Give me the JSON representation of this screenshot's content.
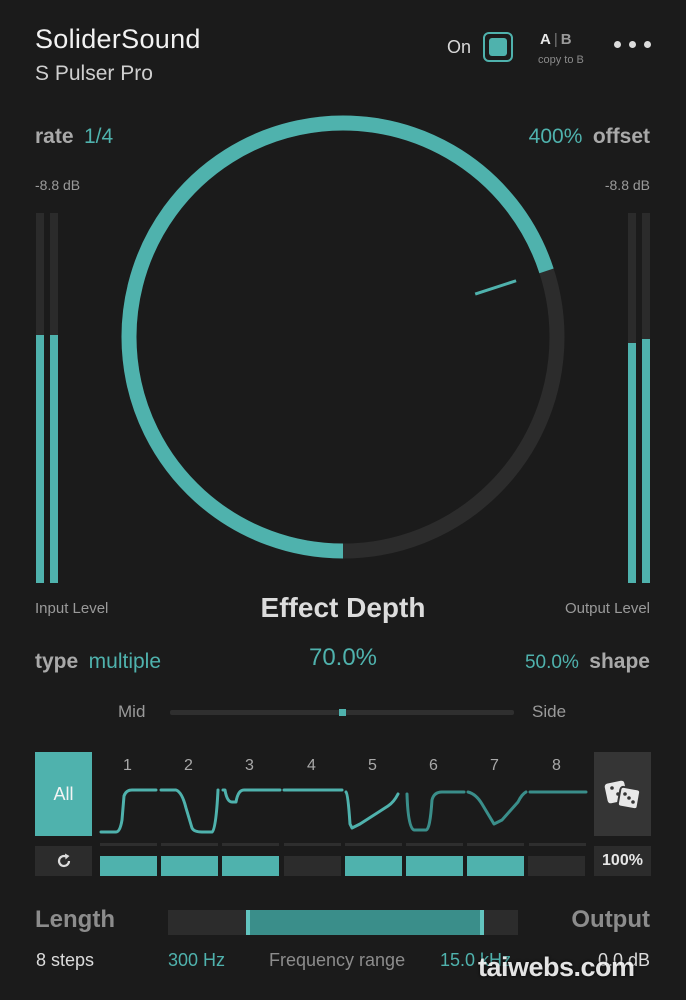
{
  "header": {
    "brand": "SoliderSound",
    "product": "S Pulser Pro",
    "on_label": "On",
    "ab_a": "A",
    "ab_sep": "|",
    "ab_b": "B",
    "copy_label": "copy to B",
    "menu_icon": "ellipsis-icon"
  },
  "rate": {
    "name": "rate",
    "value": "1/4"
  },
  "offset": {
    "value": "400%",
    "name": "offset"
  },
  "input": {
    "db": "-8.8 dB",
    "label": "Input Level",
    "levels": [
      0.67,
      0.67
    ]
  },
  "output": {
    "db": "-8.8 dB",
    "label": "Output Level",
    "levels": [
      0.65,
      0.66
    ]
  },
  "knob": {
    "fraction": 0.7
  },
  "effect_depth": {
    "title": "Effect Depth",
    "value": "70.0%"
  },
  "type": {
    "name": "type",
    "value": "multiple"
  },
  "shape": {
    "value": "50.0%",
    "name": "shape"
  },
  "mid_side": {
    "mid": "Mid",
    "side": "Side",
    "position": 0.5
  },
  "steps": {
    "all_label": "All",
    "dice_icon": "dice-icon",
    "reset_icon": "reset-icon",
    "numbers": [
      "1",
      "2",
      "3",
      "4",
      "5",
      "6",
      "7",
      "8"
    ],
    "active": [
      true,
      true,
      true,
      false,
      true,
      true,
      true,
      false
    ],
    "percent": "100%"
  },
  "length": {
    "label": "Length",
    "value": "8 steps"
  },
  "output_gain": {
    "label": "Output",
    "value": "0.0 dB"
  },
  "frequency": {
    "low": "300 Hz",
    "label": "Frequency range",
    "high": "15.0 kHz"
  },
  "watermark": "taiwebs.com",
  "colors": {
    "accent": "#4fb2ad",
    "background": "#1b1b1b",
    "track": "#2c2c2c"
  }
}
